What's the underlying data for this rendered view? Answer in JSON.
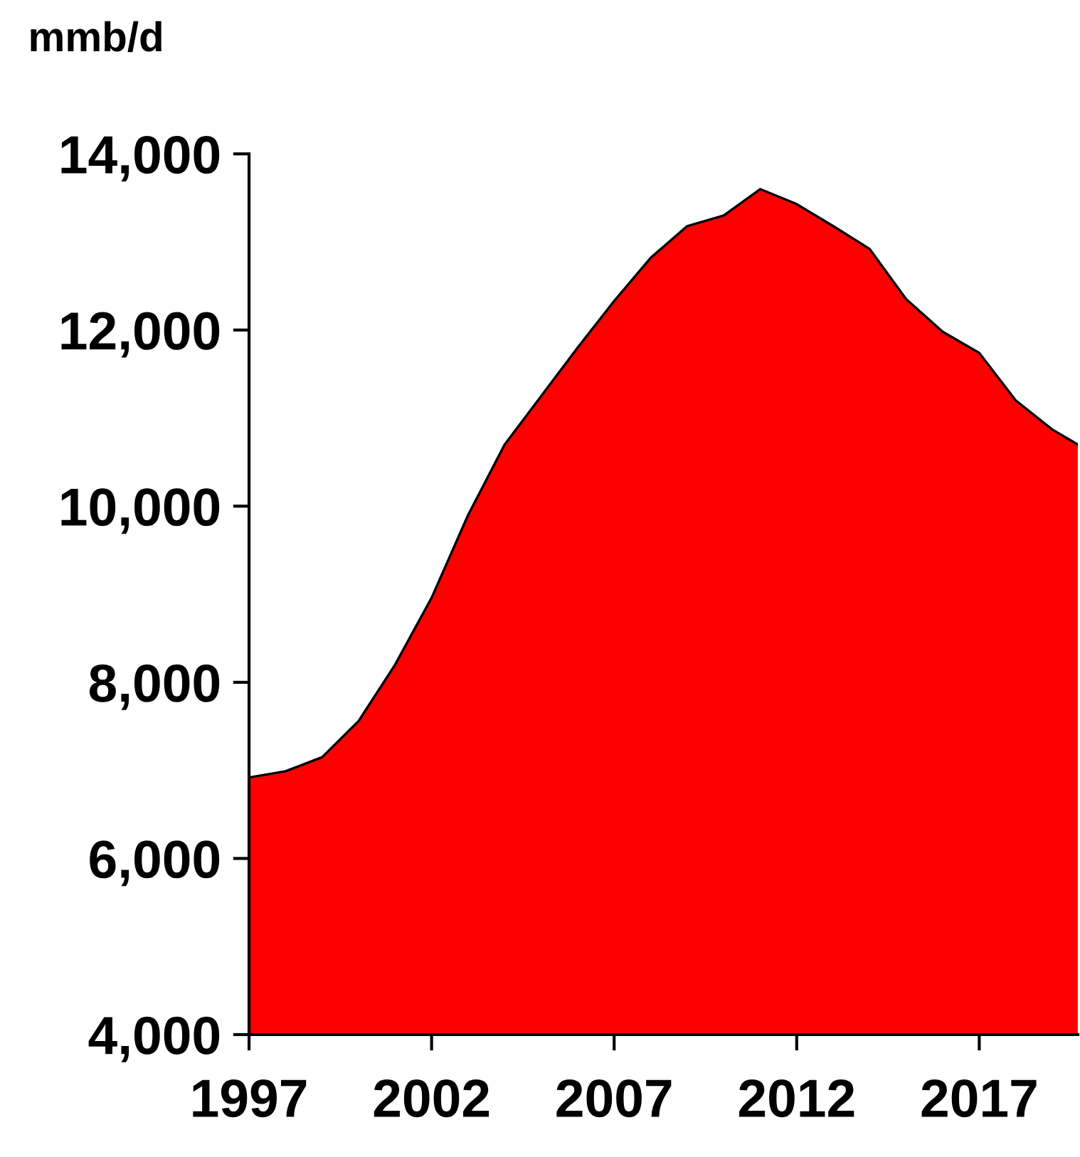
{
  "chart_data": {
    "type": "area",
    "ylabel": "mmb/d",
    "x": [
      1997,
      1998,
      1999,
      2000,
      2001,
      2002,
      2003,
      2004,
      2005,
      2006,
      2007,
      2008,
      2009,
      2010,
      2011,
      2012,
      2013,
      2014,
      2015,
      2016,
      2017,
      2018,
      2019,
      2019.7
    ],
    "series": [
      {
        "color": "#ff0000",
        "values": [
          6920,
          6990,
          7150,
          7560,
          8200,
          8960,
          9900,
          10700,
          11250,
          11800,
          12330,
          12820,
          13180,
          13300,
          13600,
          13430,
          13180,
          12920,
          12350,
          11980,
          11740,
          11200,
          10870,
          10700
        ]
      }
    ],
    "xlim": [
      1997,
      2019.7
    ],
    "xticks": [
      1997,
      2002,
      2007,
      2012,
      2017
    ],
    "ylim": [
      4000,
      14000
    ],
    "yticks": [
      {
        "value": 4000,
        "label": "4,000"
      },
      {
        "value": 6000,
        "label": "6,000"
      },
      {
        "value": 8000,
        "label": "8,000"
      },
      {
        "value": 10000,
        "label": "10,000"
      },
      {
        "value": 12000,
        "label": "12,000"
      },
      {
        "value": 14000,
        "label": "14,000"
      }
    ],
    "grid": false,
    "legend": false
  }
}
